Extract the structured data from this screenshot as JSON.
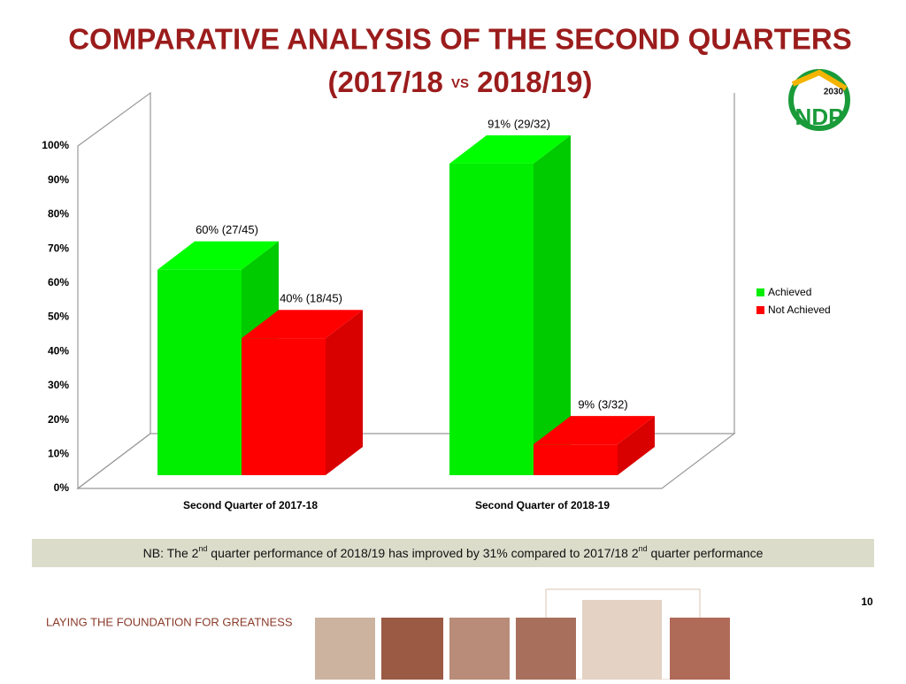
{
  "chart_data": {
    "type": "bar3d",
    "title": {
      "line1": "COMPARATIVE ANALYSIS OF THE SECOND QUARTERS",
      "line2_start": "(2017/18",
      "line2_vs": "VS",
      "line2_end": "2018/19)"
    },
    "categories": [
      "Second Quarter of 2017-18",
      "Second Quarter of 2018-19"
    ],
    "series": [
      {
        "name": "Achieved",
        "color": "#00ee00",
        "values": [
          60,
          91
        ],
        "value_labels": [
          "60% (27/45)",
          "91% (29/32)"
        ]
      },
      {
        "name": "Not Achieved",
        "color": "#ff0000",
        "values": [
          40,
          9
        ],
        "value_labels": [
          "40% (18/45)",
          "9% (3/32)"
        ]
      }
    ],
    "ylim": [
      0,
      100
    ],
    "yticks": [
      {
        "value": 0,
        "label": "0%"
      },
      {
        "value": 10,
        "label": "10%"
      },
      {
        "value": 20,
        "label": "20%"
      },
      {
        "value": 30,
        "label": "30%"
      },
      {
        "value": 40,
        "label": "40%"
      },
      {
        "value": 50,
        "label": "50%"
      },
      {
        "value": 60,
        "label": "60%"
      },
      {
        "value": 70,
        "label": "70%"
      },
      {
        "value": 80,
        "label": "80%"
      },
      {
        "value": 90,
        "label": "90%"
      },
      {
        "value": 100,
        "label": "100%"
      }
    ],
    "legend": "right"
  },
  "slide": {
    "note": [
      "NB: The 2",
      "nd",
      "  quarter performance of 2018/19 has improved by 31%  compared to 2017/18  2",
      "nd",
      " quarter performance"
    ],
    "footer": "LAYING THE FOUNDATION FOR GREATNESS",
    "page_number": "10",
    "logo_year": "2030",
    "logo_text": "NDP"
  }
}
